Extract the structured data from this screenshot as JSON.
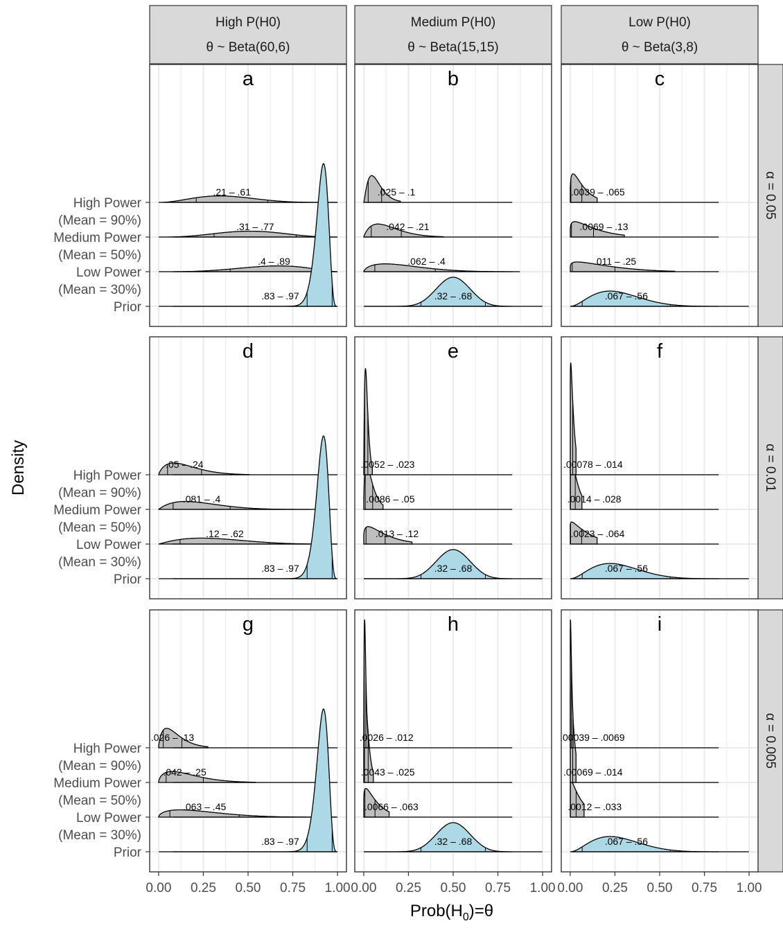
{
  "chart_data": {
    "type": "ridgeline-density-facet-grid",
    "xlabel_main": "Prob(H",
    "xlabel_sub": "0",
    "xlabel_tail": ")=θ",
    "ylabel": "Density",
    "xlim": [
      0,
      1
    ],
    "x_ticks": [
      0,
      0.25,
      0.5,
      0.75,
      1
    ],
    "x_tick_labels": [
      "0.00",
      "0.25",
      "0.50",
      "0.75",
      "1.00"
    ],
    "grid": true,
    "row_labels": [
      "High Power\n(Mean = 90%)",
      "Medium Power\n(Mean = 50%)",
      "Low Power\n(Mean = 30%)",
      "Prior"
    ],
    "col_strips": [
      {
        "line1": "High P(H0)",
        "line2": "θ ~ Beta(60,6)"
      },
      {
        "line1": "Medium P(H0)",
        "line2": "θ ~ Beta(15,15)"
      },
      {
        "line1": "Low P(H0)",
        "line2": "θ ~ Beta(3,8)"
      }
    ],
    "row_strips": [
      "α = 0.05",
      "α = 0.01",
      "α = 0.005"
    ],
    "colors": {
      "posterior": "#BEBEBE",
      "prior": "#ADD8E6",
      "strip": "#D9D9D9",
      "grid": "#EBEBEB"
    },
    "panels": [
      {
        "letter": "a",
        "prior": {
          "a": 60,
          "b": 6,
          "ci": ".83 – .97",
          "lo": 0.83,
          "hi": 0.97
        },
        "posteriors": [
          {
            "mode": 0.34,
            "ci": ".21 – .61",
            "lo": 0.21,
            "hi": 0.61
          },
          {
            "mode": 0.51,
            "ci": ".31 – .77",
            "lo": 0.31,
            "hi": 0.77
          },
          {
            "mode": 0.67,
            "ci": ".4 – .89",
            "lo": 0.4,
            "hi": 0.89
          }
        ]
      },
      {
        "letter": "b",
        "prior": {
          "a": 15,
          "b": 15,
          "ci": ".32 – .68",
          "lo": 0.32,
          "hi": 0.68
        },
        "posteriors": [
          {
            "mode": 0.045,
            "ci": ".025 – .1",
            "lo": 0.025,
            "hi": 0.1
          },
          {
            "mode": 0.08,
            "ci": ".042 – .21",
            "lo": 0.042,
            "hi": 0.21
          },
          {
            "mode": 0.12,
            "ci": ".062 – .4",
            "lo": 0.062,
            "hi": 0.4
          }
        ]
      },
      {
        "letter": "c",
        "prior": {
          "a": 3,
          "b": 8,
          "ci": ".067 – .56",
          "lo": 0.067,
          "hi": 0.56
        },
        "posteriors": [
          {
            "mode": 0.016,
            "ci": ".0039 – .065",
            "lo": 0.0039,
            "hi": 0.065
          },
          {
            "mode": 0.026,
            "ci": ".0069 – .13",
            "lo": 0.0069,
            "hi": 0.13
          },
          {
            "mode": 0.04,
            "ci": ".011 – .25",
            "lo": 0.011,
            "hi": 0.25
          }
        ]
      },
      {
        "letter": "d",
        "prior": {
          "a": 60,
          "b": 6,
          "ci": ".83 – .97",
          "lo": 0.83,
          "hi": 0.97
        },
        "posteriors": [
          {
            "mode": 0.085,
            "ci": ".05 – .24",
            "lo": 0.05,
            "hi": 0.24
          },
          {
            "mode": 0.15,
            "ci": ".081 – .4",
            "lo": 0.081,
            "hi": 0.4
          },
          {
            "mode": 0.24,
            "ci": ".12 – .62",
            "lo": 0.12,
            "hi": 0.62
          }
        ]
      },
      {
        "letter": "e",
        "prior": {
          "a": 15,
          "b": 15,
          "ci": ".32 – .68",
          "lo": 0.32,
          "hi": 0.68
        },
        "posteriors": [
          {
            "mode": 0.01,
            "ci": ".0052 – .023",
            "lo": 0.0052,
            "hi": 0.023
          },
          {
            "mode": 0.016,
            "ci": ".0086 – .05",
            "lo": 0.0086,
            "hi": 0.05
          },
          {
            "mode": 0.025,
            "ci": ".013 – .12",
            "lo": 0.013,
            "hi": 0.12
          }
        ]
      },
      {
        "letter": "f",
        "prior": {
          "a": 3,
          "b": 8,
          "ci": ".067 – .56",
          "lo": 0.067,
          "hi": 0.56
        },
        "posteriors": [
          {
            "mode": 0.003,
            "ci": ".00078 – .014",
            "lo": 0.00078,
            "hi": 0.014
          },
          {
            "mode": 0.005,
            "ci": ".0014 – .028",
            "lo": 0.0014,
            "hi": 0.028
          },
          {
            "mode": 0.008,
            "ci": ".0023 – .064",
            "lo": 0.0023,
            "hi": 0.064
          }
        ]
      },
      {
        "letter": "g",
        "prior": {
          "a": 60,
          "b": 6,
          "ci": ".83 – .97",
          "lo": 0.83,
          "hi": 0.97
        },
        "posteriors": [
          {
            "mode": 0.045,
            "ci": ".026 – .13",
            "lo": 0.026,
            "hi": 0.13
          },
          {
            "mode": 0.075,
            "ci": ".042 – .25",
            "lo": 0.042,
            "hi": 0.25
          },
          {
            "mode": 0.12,
            "ci": ".063 – .45",
            "lo": 0.063,
            "hi": 0.45
          }
        ]
      },
      {
        "letter": "h",
        "prior": {
          "a": 15,
          "b": 15,
          "ci": ".32 – .68",
          "lo": 0.32,
          "hi": 0.68
        },
        "posteriors": [
          {
            "mode": 0.005,
            "ci": ".0026 – .012",
            "lo": 0.0026,
            "hi": 0.012
          },
          {
            "mode": 0.008,
            "ci": ".0043 – .025",
            "lo": 0.0043,
            "hi": 0.025
          },
          {
            "mode": 0.012,
            "ci": ".0066 – .063",
            "lo": 0.0066,
            "hi": 0.063
          }
        ]
      },
      {
        "letter": "i",
        "prior": {
          "a": 3,
          "b": 8,
          "ci": ".067 – .56",
          "lo": 0.067,
          "hi": 0.56
        },
        "posteriors": [
          {
            "mode": 0.0015,
            "ci": ".00039 – .0069",
            "lo": 0.00039,
            "hi": 0.0069
          },
          {
            "mode": 0.0025,
            "ci": ".00069 – .014",
            "lo": 0.00069,
            "hi": 0.014
          },
          {
            "mode": 0.004,
            "ci": ".0012 – .033",
            "lo": 0.0012,
            "hi": 0.033
          }
        ]
      }
    ]
  }
}
